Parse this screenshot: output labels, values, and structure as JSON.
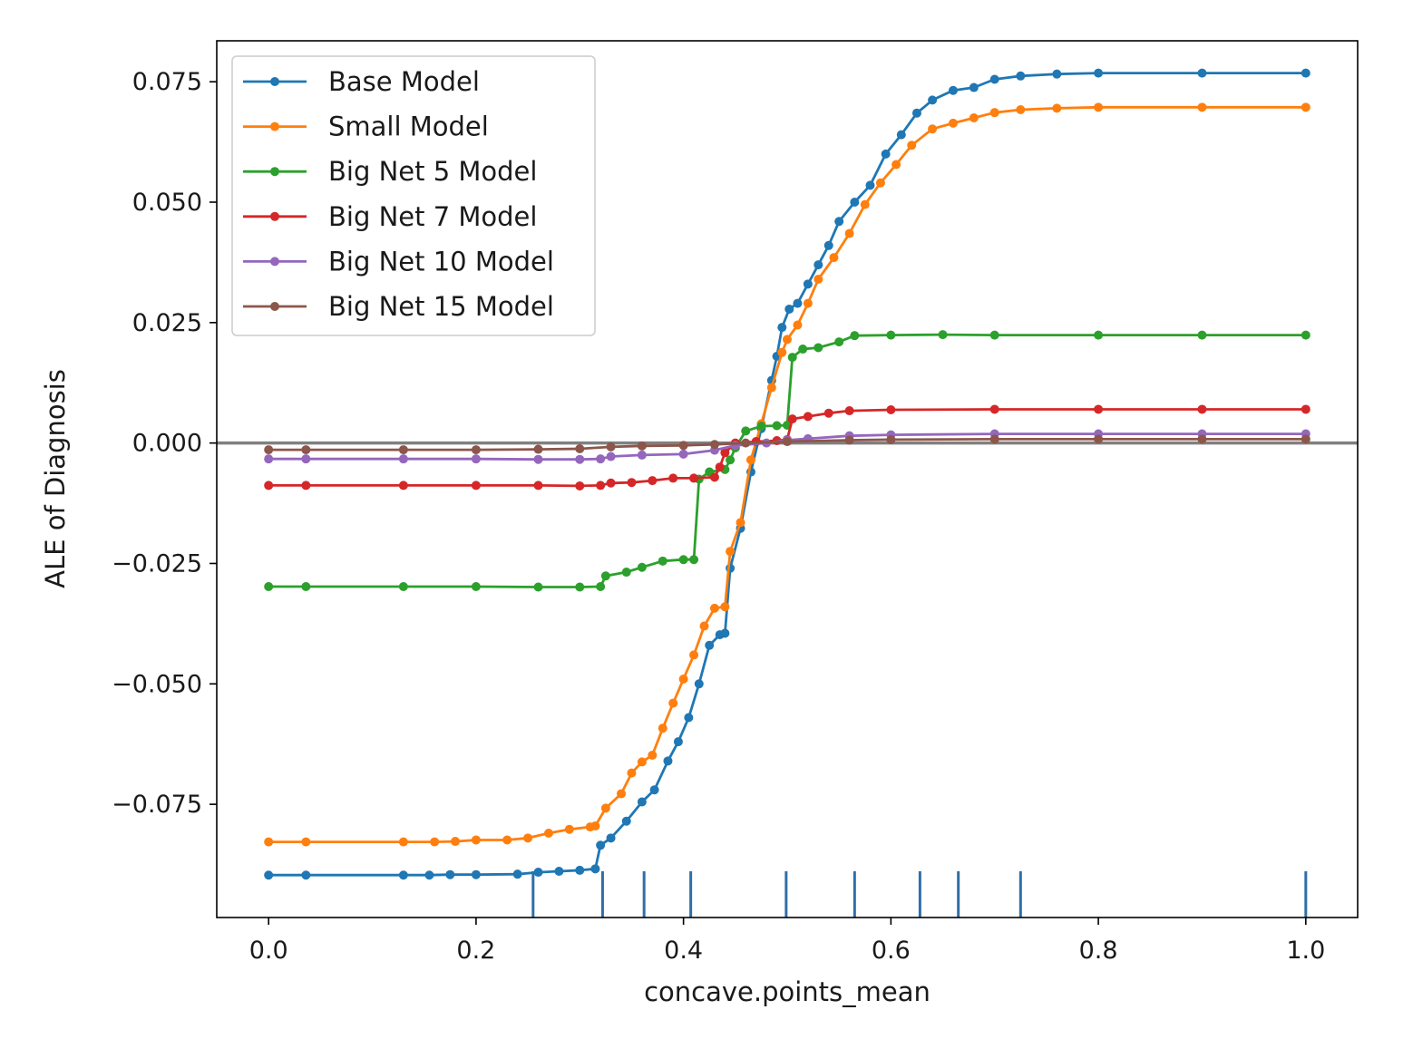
{
  "chart_data": {
    "type": "line",
    "title": "",
    "xlabel": "concave.points_mean",
    "ylabel": "ALE of Diagnosis",
    "xlim": [
      -0.05,
      1.05
    ],
    "ylim": [
      -0.0985,
      0.0835
    ],
    "x_ticks": [
      0.0,
      0.2,
      0.4,
      0.6,
      0.8,
      1.0
    ],
    "x_tick_labels": [
      "0.0",
      "0.2",
      "0.4",
      "0.6",
      "0.8",
      "1.0"
    ],
    "y_ticks": [
      -0.075,
      -0.05,
      -0.025,
      0.0,
      0.025,
      0.05,
      0.075
    ],
    "y_tick_labels": [
      "−0.075",
      "−0.050",
      "−0.025",
      "0.000",
      "0.025",
      "0.050",
      "0.075"
    ],
    "grid": false,
    "legend_position": "top-left",
    "reference_line": {
      "y": 0.0,
      "color": "#808080"
    },
    "rug": {
      "x": [
        0.255,
        0.322,
        0.362,
        0.407,
        0.499,
        0.565,
        0.628,
        0.665,
        0.725,
        1.0
      ],
      "color": "#2f6fa8"
    },
    "series": [
      {
        "name": "Base Model",
        "color": "#1f77b4",
        "points": [
          [
            0.0,
            -0.0897
          ],
          [
            0.036,
            -0.0897
          ],
          [
            0.13,
            -0.0897
          ],
          [
            0.155,
            -0.0897
          ],
          [
            0.175,
            -0.0896
          ],
          [
            0.2,
            -0.0896
          ],
          [
            0.24,
            -0.0895
          ],
          [
            0.26,
            -0.0891
          ],
          [
            0.28,
            -0.0889
          ],
          [
            0.3,
            -0.0887
          ],
          [
            0.315,
            -0.0884
          ],
          [
            0.32,
            -0.0835
          ],
          [
            0.33,
            -0.082
          ],
          [
            0.345,
            -0.0785
          ],
          [
            0.36,
            -0.0745
          ],
          [
            0.372,
            -0.072
          ],
          [
            0.385,
            -0.066
          ],
          [
            0.395,
            -0.062
          ],
          [
            0.405,
            -0.057
          ],
          [
            0.415,
            -0.05
          ],
          [
            0.425,
            -0.042
          ],
          [
            0.435,
            -0.0398
          ],
          [
            0.44,
            -0.0395
          ],
          [
            0.445,
            -0.026
          ],
          [
            0.455,
            -0.0177
          ],
          [
            0.465,
            -0.006
          ],
          [
            0.475,
            0.003
          ],
          [
            0.485,
            0.013
          ],
          [
            0.49,
            0.018
          ],
          [
            0.495,
            0.024
          ],
          [
            0.502,
            0.0278
          ],
          [
            0.51,
            0.029
          ],
          [
            0.52,
            0.033
          ],
          [
            0.53,
            0.037
          ],
          [
            0.54,
            0.041
          ],
          [
            0.55,
            0.046
          ],
          [
            0.565,
            0.05
          ],
          [
            0.58,
            0.0535
          ],
          [
            0.595,
            0.06
          ],
          [
            0.61,
            0.064
          ],
          [
            0.625,
            0.0685
          ],
          [
            0.64,
            0.0712
          ],
          [
            0.66,
            0.0732
          ],
          [
            0.68,
            0.0738
          ],
          [
            0.7,
            0.0755
          ],
          [
            0.725,
            0.0762
          ],
          [
            0.76,
            0.0766
          ],
          [
            0.8,
            0.0768
          ],
          [
            0.9,
            0.0768
          ],
          [
            1.0,
            0.0768
          ]
        ]
      },
      {
        "name": "Small Model",
        "color": "#ff7f0e",
        "points": [
          [
            0.0,
            -0.0828
          ],
          [
            0.036,
            -0.0828
          ],
          [
            0.13,
            -0.0828
          ],
          [
            0.16,
            -0.0828
          ],
          [
            0.18,
            -0.0827
          ],
          [
            0.2,
            -0.0824
          ],
          [
            0.23,
            -0.0824
          ],
          [
            0.25,
            -0.082
          ],
          [
            0.27,
            -0.081
          ],
          [
            0.29,
            -0.0802
          ],
          [
            0.31,
            -0.0797
          ],
          [
            0.315,
            -0.0795
          ],
          [
            0.325,
            -0.0758
          ],
          [
            0.34,
            -0.0728
          ],
          [
            0.35,
            -0.0685
          ],
          [
            0.36,
            -0.0662
          ],
          [
            0.37,
            -0.0648
          ],
          [
            0.38,
            -0.0592
          ],
          [
            0.39,
            -0.054
          ],
          [
            0.4,
            -0.049
          ],
          [
            0.41,
            -0.044
          ],
          [
            0.42,
            -0.038
          ],
          [
            0.43,
            -0.0343
          ],
          [
            0.44,
            -0.034
          ],
          [
            0.445,
            -0.0225
          ],
          [
            0.455,
            -0.0165
          ],
          [
            0.465,
            -0.0035
          ],
          [
            0.475,
            0.004
          ],
          [
            0.485,
            0.0115
          ],
          [
            0.495,
            0.0188
          ],
          [
            0.5,
            0.0215
          ],
          [
            0.51,
            0.0245
          ],
          [
            0.52,
            0.029
          ],
          [
            0.53,
            0.034
          ],
          [
            0.545,
            0.0385
          ],
          [
            0.56,
            0.0435
          ],
          [
            0.575,
            0.0495
          ],
          [
            0.59,
            0.054
          ],
          [
            0.605,
            0.0578
          ],
          [
            0.62,
            0.0618
          ],
          [
            0.64,
            0.0652
          ],
          [
            0.66,
            0.0664
          ],
          [
            0.68,
            0.0675
          ],
          [
            0.7,
            0.0686
          ],
          [
            0.725,
            0.0692
          ],
          [
            0.76,
            0.0695
          ],
          [
            0.8,
            0.0697
          ],
          [
            0.9,
            0.0697
          ],
          [
            1.0,
            0.0697
          ]
        ]
      },
      {
        "name": "Big Net 5 Model",
        "color": "#2ca02c",
        "points": [
          [
            0.0,
            -0.0298
          ],
          [
            0.036,
            -0.0298
          ],
          [
            0.13,
            -0.0298
          ],
          [
            0.2,
            -0.0298
          ],
          [
            0.26,
            -0.0299
          ],
          [
            0.3,
            -0.0299
          ],
          [
            0.32,
            -0.0298
          ],
          [
            0.325,
            -0.0276
          ],
          [
            0.345,
            -0.0268
          ],
          [
            0.36,
            -0.0258
          ],
          [
            0.38,
            -0.0245
          ],
          [
            0.4,
            -0.0242
          ],
          [
            0.41,
            -0.0242
          ],
          [
            0.415,
            -0.0075
          ],
          [
            0.425,
            -0.006
          ],
          [
            0.44,
            -0.0055
          ],
          [
            0.445,
            -0.0035
          ],
          [
            0.45,
            -0.001
          ],
          [
            0.46,
            0.0025
          ],
          [
            0.475,
            0.0035
          ],
          [
            0.49,
            0.0036
          ],
          [
            0.5,
            0.0037
          ],
          [
            0.505,
            0.0178
          ],
          [
            0.515,
            0.0195
          ],
          [
            0.53,
            0.0198
          ],
          [
            0.55,
            0.021
          ],
          [
            0.565,
            0.0223
          ],
          [
            0.6,
            0.0224
          ],
          [
            0.65,
            0.0225
          ],
          [
            0.7,
            0.0224
          ],
          [
            0.8,
            0.0224
          ],
          [
            0.9,
            0.0224
          ],
          [
            1.0,
            0.0224
          ]
        ]
      },
      {
        "name": "Big Net 7 Model",
        "color": "#d62728",
        "points": [
          [
            0.0,
            -0.0088
          ],
          [
            0.036,
            -0.0088
          ],
          [
            0.13,
            -0.0088
          ],
          [
            0.2,
            -0.0088
          ],
          [
            0.26,
            -0.0088
          ],
          [
            0.3,
            -0.0089
          ],
          [
            0.32,
            -0.0088
          ],
          [
            0.33,
            -0.0083
          ],
          [
            0.35,
            -0.0082
          ],
          [
            0.37,
            -0.0078
          ],
          [
            0.39,
            -0.0073
          ],
          [
            0.41,
            -0.0073
          ],
          [
            0.43,
            -0.0071
          ],
          [
            0.435,
            -0.005
          ],
          [
            0.44,
            -0.002
          ],
          [
            0.45,
            0.0
          ],
          [
            0.47,
            0.0003
          ],
          [
            0.49,
            0.0005
          ],
          [
            0.5,
            0.0007
          ],
          [
            0.505,
            0.005
          ],
          [
            0.52,
            0.0055
          ],
          [
            0.54,
            0.0062
          ],
          [
            0.56,
            0.0067
          ],
          [
            0.6,
            0.0069
          ],
          [
            0.7,
            0.007
          ],
          [
            0.8,
            0.007
          ],
          [
            0.9,
            0.007
          ],
          [
            1.0,
            0.007
          ]
        ]
      },
      {
        "name": "Big Net 10 Model",
        "color": "#9467bd",
        "points": [
          [
            0.0,
            -0.0033
          ],
          [
            0.036,
            -0.0033
          ],
          [
            0.13,
            -0.0033
          ],
          [
            0.2,
            -0.0033
          ],
          [
            0.26,
            -0.0034
          ],
          [
            0.3,
            -0.0034
          ],
          [
            0.32,
            -0.0033
          ],
          [
            0.33,
            -0.0028
          ],
          [
            0.36,
            -0.0025
          ],
          [
            0.4,
            -0.0023
          ],
          [
            0.43,
            -0.0015
          ],
          [
            0.45,
            -0.0005
          ],
          [
            0.48,
            0.0
          ],
          [
            0.5,
            0.0006
          ],
          [
            0.52,
            0.0009
          ],
          [
            0.56,
            0.0015
          ],
          [
            0.6,
            0.0017
          ],
          [
            0.7,
            0.0019
          ],
          [
            0.8,
            0.0019
          ],
          [
            0.9,
            0.0019
          ],
          [
            1.0,
            0.0019
          ]
        ]
      },
      {
        "name": "Big Net 15 Model",
        "color": "#8c564b",
        "points": [
          [
            0.0,
            -0.0014
          ],
          [
            0.036,
            -0.0014
          ],
          [
            0.13,
            -0.0014
          ],
          [
            0.2,
            -0.0014
          ],
          [
            0.26,
            -0.0013
          ],
          [
            0.3,
            -0.0012
          ],
          [
            0.33,
            -0.0008
          ],
          [
            0.36,
            -0.0006
          ],
          [
            0.4,
            -0.0005
          ],
          [
            0.43,
            -0.0003
          ],
          [
            0.46,
            0.0
          ],
          [
            0.5,
            0.0003
          ],
          [
            0.56,
            0.0006
          ],
          [
            0.6,
            0.0007
          ],
          [
            0.7,
            0.0008
          ],
          [
            0.8,
            0.0008
          ],
          [
            0.9,
            0.0008
          ],
          [
            1.0,
            0.0008
          ]
        ]
      }
    ]
  }
}
